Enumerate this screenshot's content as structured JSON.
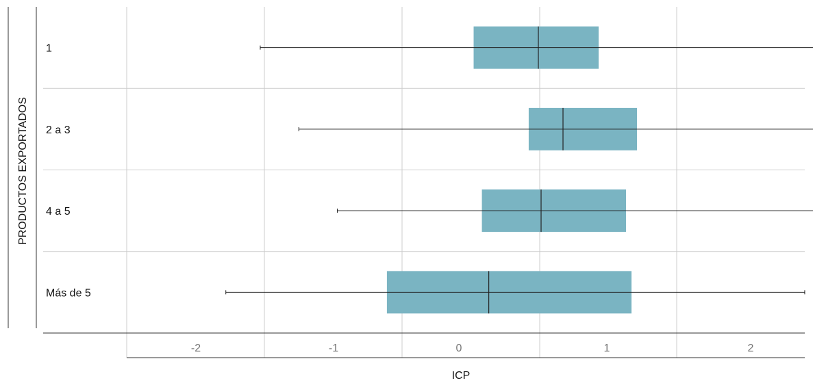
{
  "chart_data": {
    "type": "box",
    "orientation": "horizontal",
    "title": "",
    "xlabel": "ICP",
    "ylabel": "PRODUCTOS EXPORTADOS",
    "categories": [
      "1",
      "2 a 3",
      "4 a 5",
      "Más de 5"
    ],
    "x_ticks": [
      -2,
      -1,
      0,
      1,
      2
    ],
    "x_tick_labels": [
      "-2",
      "-1",
      "0",
      "1",
      "2"
    ],
    "grid": true,
    "box_color": "#7ab4c2",
    "boxes": [
      {
        "category": "1",
        "whisker_low": -2.03,
        "q1": -0.48,
        "median": -0.01,
        "q3": 0.43,
        "whisker_high": 2.0
      },
      {
        "category": "2 a 3",
        "whisker_low": -1.75,
        "q1": -0.08,
        "median": 0.17,
        "q3": 0.71,
        "whisker_high": 2.0
      },
      {
        "category": "4 a 5",
        "whisker_low": -1.47,
        "q1": -0.42,
        "median": 0.01,
        "q3": 0.63,
        "whisker_high": 2.15
      },
      {
        "category": "Más de 5",
        "whisker_low": -2.28,
        "q1": -1.11,
        "median": -0.37,
        "q3": 0.67,
        "whisker_high": 1.93
      }
    ]
  }
}
